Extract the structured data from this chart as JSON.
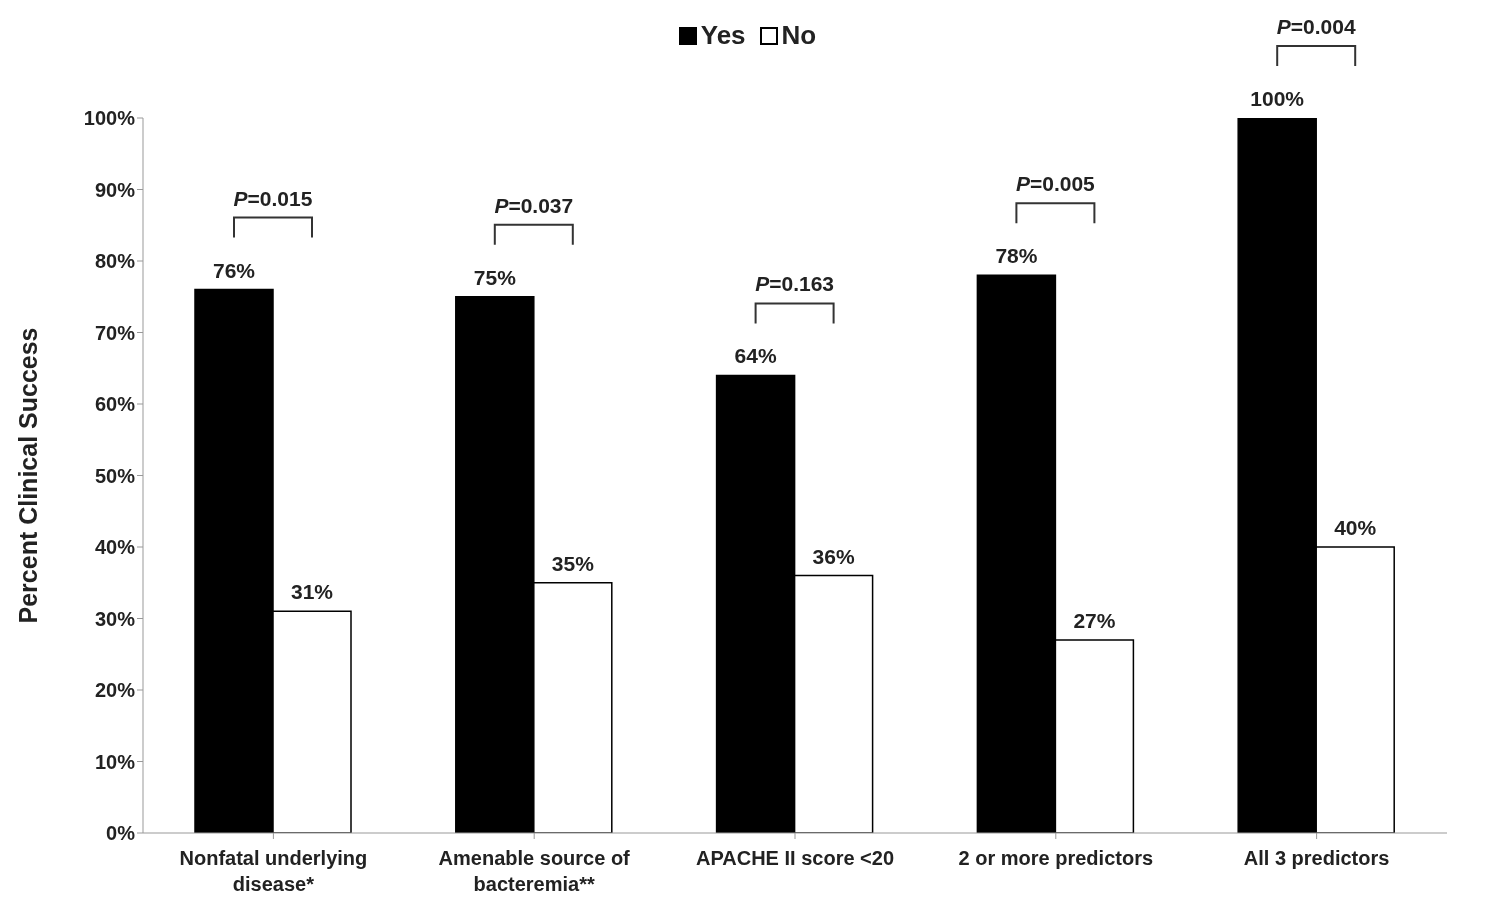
{
  "chart_data": {
    "type": "bar",
    "ylabel": "Percent Clinical Success",
    "categories": [
      "Nonfatal underlying disease*",
      "Amenable source of bacteremia**",
      "APACHE II score <20",
      "2 or more predictors",
      "All 3 predictors"
    ],
    "series": [
      {
        "name": "Yes",
        "color": "#000000",
        "values": [
          76,
          75,
          64,
          78,
          100
        ],
        "value_labels": [
          "76%",
          "75%",
          "64%",
          "78%",
          "100%"
        ]
      },
      {
        "name": "No",
        "color": "#ffffff",
        "values": [
          31,
          35,
          36,
          27,
          40
        ],
        "value_labels": [
          "31%",
          "35%",
          "36%",
          "27%",
          "40%"
        ]
      }
    ],
    "ylim": [
      0,
      100
    ],
    "yticks": [
      {
        "value": 0,
        "label": "0%"
      },
      {
        "value": 10,
        "label": "10%"
      },
      {
        "value": 20,
        "label": "20%"
      },
      {
        "value": 30,
        "label": "30%"
      },
      {
        "value": 40,
        "label": "40%"
      },
      {
        "value": 50,
        "label": "50%"
      },
      {
        "value": 60,
        "label": "60%"
      },
      {
        "value": 70,
        "label": "70%"
      },
      {
        "value": 80,
        "label": "80%"
      },
      {
        "value": 90,
        "label": "90%"
      },
      {
        "value": 100,
        "label": "100%"
      }
    ],
    "annotations": [
      "P=0.015",
      "P=0.037",
      "P=0.163",
      "P=0.005",
      "P=0.004"
    ],
    "legend": "top"
  }
}
